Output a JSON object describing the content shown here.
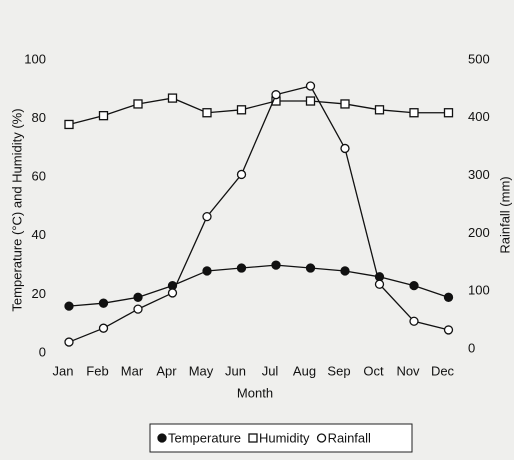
{
  "chart_data": {
    "type": "line",
    "categories": [
      "Jan",
      "Feb",
      "Mar",
      "Apr",
      "May",
      "Jun",
      "Jul",
      "Aug",
      "Sep",
      "Oct",
      "Nov",
      "Dec"
    ],
    "x_label": "Month",
    "y_label": "Temperature (°C) and Humidity (%)",
    "y2_label": "Rainfall (mm)",
    "ylim": [
      0,
      100
    ],
    "yticks": [
      0,
      20,
      40,
      60,
      80,
      100
    ],
    "y2lim": [
      0,
      500
    ],
    "y2ticks": [
      0,
      100,
      200,
      300,
      400,
      500
    ],
    "legend": "bottom",
    "series": [
      {
        "name": "Temperature",
        "color": "#111111",
        "marker": "filled-circle",
        "values": [
          16,
          17,
          19,
          23,
          28,
          29,
          30,
          29,
          28,
          26,
          23,
          19
        ]
      },
      {
        "name": "Humidity",
        "color": "#111111",
        "marker": "square",
        "values": [
          78,
          81,
          85,
          87,
          82,
          83,
          86,
          86,
          85,
          83,
          82,
          82
        ]
      },
      {
        "name": "Rainfall",
        "color": "#111111",
        "marker": "circle",
        "axis": "y2",
        "values": [
          12,
          36,
          69,
          97,
          229,
          302,
          440,
          455,
          347,
          112,
          48,
          33
        ]
      }
    ]
  }
}
